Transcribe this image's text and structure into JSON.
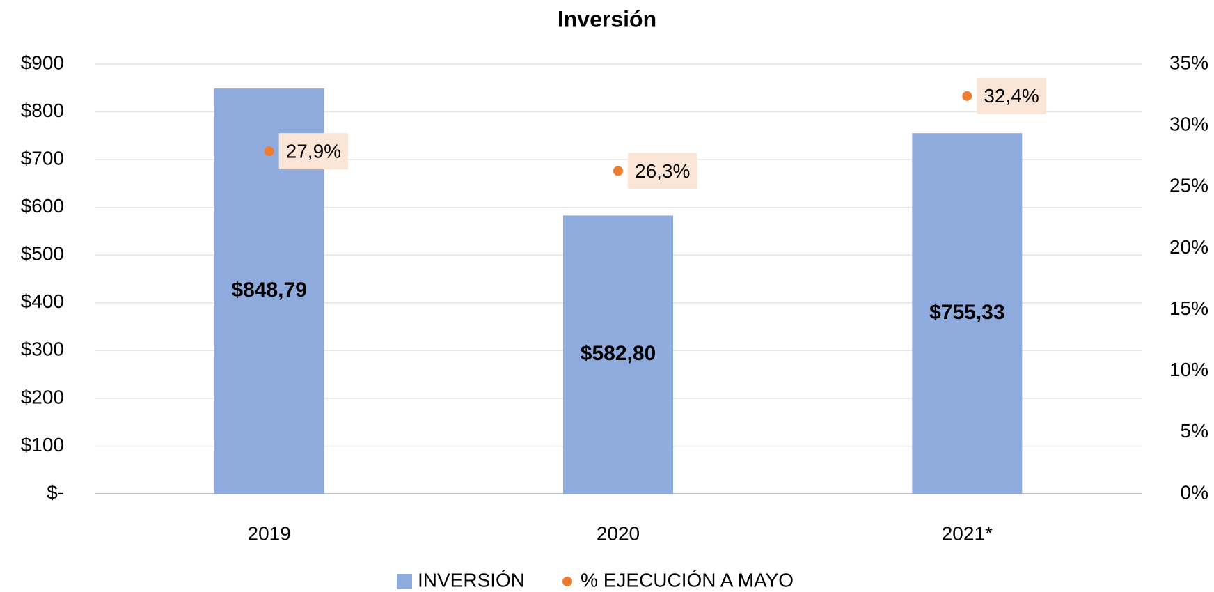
{
  "chart_data": {
    "type": "bar",
    "title": "Inversión",
    "categories": [
      "2019",
      "2020",
      "2021*"
    ],
    "series": [
      {
        "name": "INVERSIÓN",
        "color": "#8faadc",
        "values": [
          848.79,
          582.8,
          755.33
        ],
        "value_labels": [
          "$848,79",
          "$582,80",
          "$755,33"
        ]
      },
      {
        "name": "% EJECUCIÓN A MAYO",
        "type": "scatter",
        "axis": "y2",
        "color": "#ed7d31",
        "values": [
          27.9,
          26.3,
          32.4
        ],
        "value_labels": [
          "27,9%",
          "26,3%",
          "32,4%"
        ]
      }
    ],
    "ylim": [
      0,
      900
    ],
    "yticks": [
      {
        "value": 0,
        "label": "$-"
      },
      {
        "value": 100,
        "label": "$100"
      },
      {
        "value": 200,
        "label": "$200"
      },
      {
        "value": 300,
        "label": "$300"
      },
      {
        "value": 400,
        "label": "$400"
      },
      {
        "value": 500,
        "label": "$500"
      },
      {
        "value": 600,
        "label": "$600"
      },
      {
        "value": 700,
        "label": "$700"
      },
      {
        "value": 800,
        "label": "$800"
      },
      {
        "value": 900,
        "label": "$900"
      }
    ],
    "y2lim": [
      0,
      35
    ],
    "y2ticks": [
      {
        "value": 0,
        "label": "0%"
      },
      {
        "value": 5,
        "label": "5%"
      },
      {
        "value": 10,
        "label": "10%"
      },
      {
        "value": 15,
        "label": "15%"
      },
      {
        "value": 20,
        "label": "20%"
      },
      {
        "value": 25,
        "label": "25%"
      },
      {
        "value": 30,
        "label": "30%"
      },
      {
        "value": 35,
        "label": "35%"
      }
    ],
    "grid": true,
    "legend": "bottom"
  }
}
